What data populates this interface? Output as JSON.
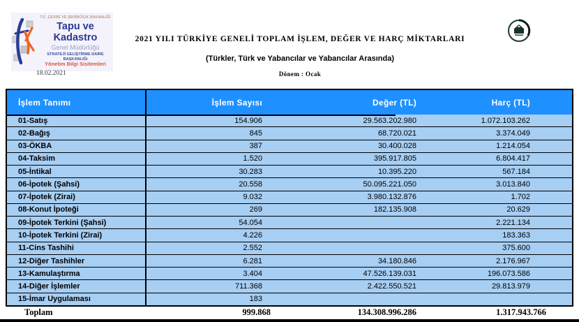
{
  "header": {
    "agency_top": "T.C. ÇEVRE VE ŞEHİRCİLİK BAKANLIĞI",
    "agency_name": "Tapu ve Kadastro",
    "agency_sub": "Genel Müdürlüğü",
    "department": "STRATEJİ GELİŞTİRME DAİRE BAŞKANLIĞI",
    "unit": "Yönetim Bilgi Sisitemleri",
    "date": "18.02.2021",
    "title": "2021  YILI TÜRKİYE GENELİ TOPLAM İŞLEM, DEĞER VE HARÇ MİKTARLARI",
    "subtitle": "(Türkler, Türk ve Yabancılar ve Yabancılar Arasında)",
    "period": "Dönem : Ocak"
  },
  "table": {
    "columns": [
      "İşlem Tanımı",
      "İşlem Sayısı",
      "Değer (TL)",
      "Harç (TL)"
    ],
    "rows": [
      {
        "label": "01-Satış",
        "count": "154.906",
        "value": "29.563.202.980",
        "fee": "1.072.103.262"
      },
      {
        "label": "02-Bağış",
        "count": "845",
        "value": "68.720.021",
        "fee": "3.374.049"
      },
      {
        "label": "03-ÖKBA",
        "count": "387",
        "value": "30.400.028",
        "fee": "1.214.054"
      },
      {
        "label": "04-Taksim",
        "count": "1.520",
        "value": "395.917.805",
        "fee": "6.804.417"
      },
      {
        "label": "05-İntikal",
        "count": "30.283",
        "value": "10.395.220",
        "fee": "567.184"
      },
      {
        "label": "06-İpotek (Şahsi)",
        "count": "20.558",
        "value": "50.095.221.050",
        "fee": "3.013.840"
      },
      {
        "label": "07-İpotek (Zirai)",
        "count": "9.032",
        "value": "3.980.132.876",
        "fee": "1.702"
      },
      {
        "label": "08-Konut İpoteği",
        "count": "269",
        "value": "182.135.908",
        "fee": "20.629"
      },
      {
        "label": "09-İpotek Terkini (Şahsi)",
        "count": "54.054",
        "value": "",
        "fee": "2.221.134"
      },
      {
        "label": "10-İpotek Terkini (Zirai)",
        "count": "4.226",
        "value": "",
        "fee": "183.363"
      },
      {
        "label": "11-Cins Tashihi",
        "count": "2.552",
        "value": "",
        "fee": "375.600"
      },
      {
        "label": "12-Diğer Tashihler",
        "count": "6.281",
        "value": "34.180.846",
        "fee": "2.176.967"
      },
      {
        "label": "13-Kamulaştırma",
        "count": "3.404",
        "value": "47.526.139.031",
        "fee": "196.073.586"
      },
      {
        "label": "14-Diğer İşlemler",
        "count": "711.368",
        "value": "2.422.550.521",
        "fee": "29.813.979"
      },
      {
        "label": "15-İmar Uygulaması",
        "count": "183",
        "value": "",
        "fee": ""
      }
    ],
    "total": {
      "label": "Toplam",
      "count": "999.868",
      "value": "134.308.996.286",
      "fee": "1.317.943.766"
    }
  },
  "colors": {
    "header_bg": "#1E90FF",
    "row_bg": "#A7CEF3",
    "logo_blue": "#2B3A94",
    "logo_orange": "#F26522",
    "unit_red": "#E2543C",
    "border": "#000000"
  }
}
